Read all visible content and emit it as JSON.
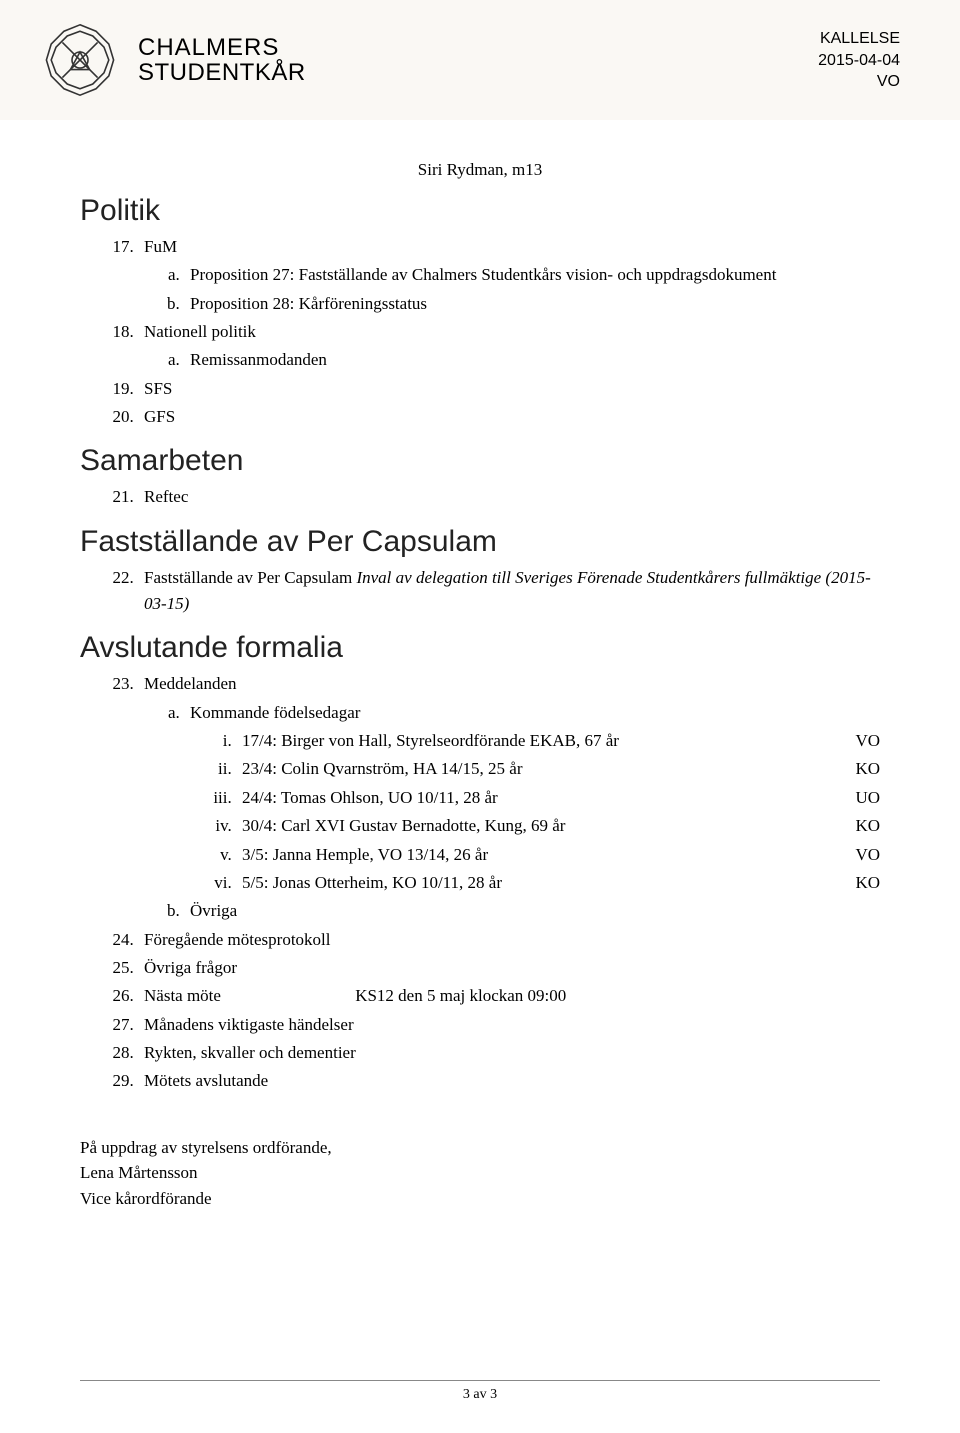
{
  "header": {
    "org1": "CHALMERS",
    "org2": "STUDENTKÅR",
    "doc_type": "KALLELSE",
    "date": "2015-04-04",
    "author": "VO"
  },
  "presenter": "Siri Rydman, m13",
  "sections": {
    "politik": "Politik",
    "samarbeten": "Samarbeten",
    "fast": "Fastställande av Per Capsulam",
    "avslut": "Avslutande formalia"
  },
  "items": {
    "17": "FuM",
    "17a": "Proposition 27: Fastställande av Chalmers Studentkårs vision- och uppdragsdokument",
    "17b": "Proposition 28: Kårföreningsstatus",
    "18": "Nationell politik",
    "18a": "Remissanmodanden",
    "19": "SFS",
    "20": "GFS",
    "21": "Reftec",
    "22_pre": "Fastställande av Per Capsulam ",
    "22_ital": "Inval av delegation till Sveriges Förenade Studentkårers fullmäktige (2015-03-15)",
    "23": "Meddelanden",
    "23a": "Kommande födelsedagar",
    "23b": "Övriga",
    "24": "Föregående mötesprotokoll",
    "25": "Övriga frågor",
    "26": "Nästa möte",
    "26_note": "KS12 den 5 maj klockan 09:00",
    "27": "Månadens viktigaste händelser",
    "28": "Rykten, skvaller och dementier",
    "29": "Mötets avslutande"
  },
  "birthdays": [
    {
      "text": "17/4: Birger von Hall, Styrelseordförande EKAB, 67 år",
      "role": "VO"
    },
    {
      "text": "23/4: Colin Qvarnström, HA 14/15, 25 år",
      "role": "KO"
    },
    {
      "text": "24/4: Tomas Ohlson, UO 10/11, 28 år",
      "role": "UO"
    },
    {
      "text": "30/4: Carl XVI Gustav Bernadotte, Kung, 69 år",
      "role": "KO"
    },
    {
      "text": "3/5: Janna Hemple, VO 13/14, 26 år",
      "role": "VO"
    },
    {
      "text": "5/5: Jonas Otterheim, KO 10/11, 28 år",
      "role": "KO"
    }
  ],
  "sign": {
    "behalf": "På uppdrag av styrelsens ordförande,",
    "name": "Lena Mårtensson",
    "title": "Vice kårordförande"
  },
  "footer": "3 av 3"
}
